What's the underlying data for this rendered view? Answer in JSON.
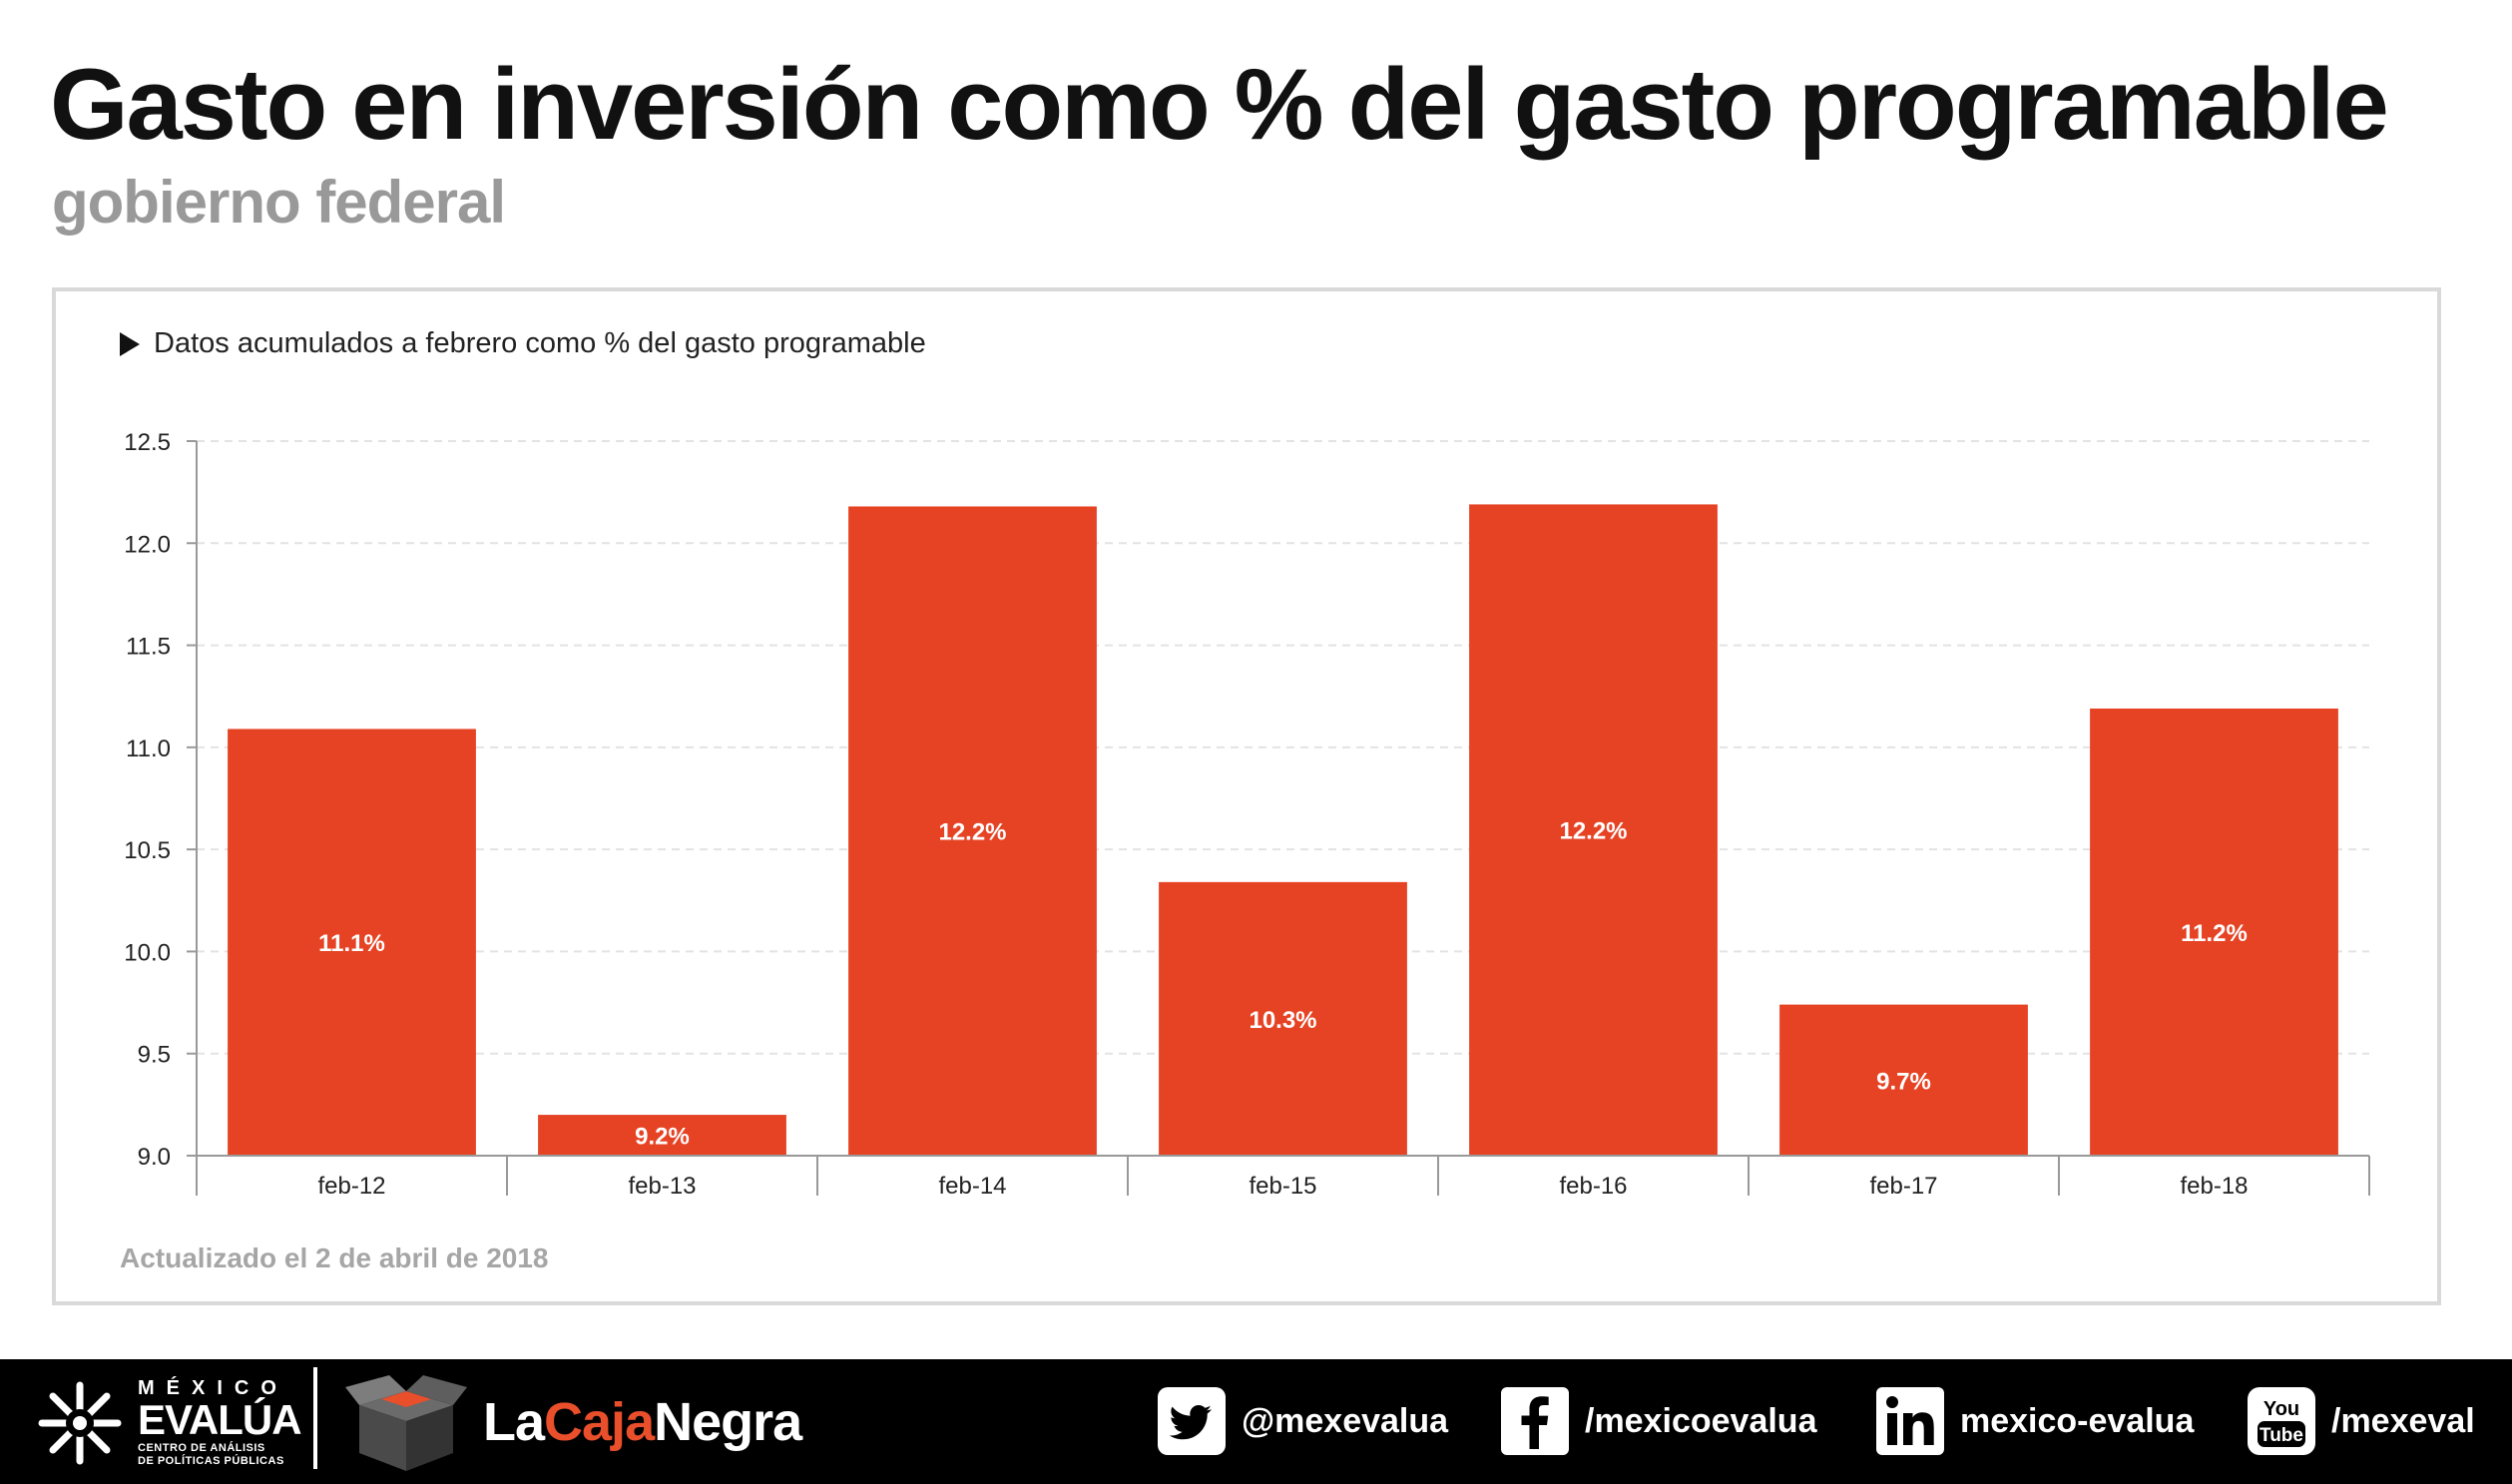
{
  "title": "Gasto en inversión como % del gasto programable",
  "subtitle": "gobierno federal",
  "note": "Datos acumulados a febrero como % del gasto programable",
  "updated": "Actualizado el 2 de abril de 2018",
  "colors": {
    "bar": "#e64324",
    "bar_label": "#ffffff",
    "footer_bg": "#000000",
    "accent": "#e84f2a"
  },
  "chart_data": {
    "type": "bar",
    "categories": [
      "feb-12",
      "feb-13",
      "feb-14",
      "feb-15",
      "feb-16",
      "feb-17",
      "feb-18"
    ],
    "values": [
      11.09,
      9.2,
      12.18,
      10.34,
      12.19,
      9.74,
      11.19
    ],
    "data_labels": [
      "11.1%",
      "9.2%",
      "12.2%",
      "10.3%",
      "12.2%",
      "9.7%",
      "11.2%"
    ],
    "yticks": [
      "9.0",
      "9.5",
      "10.0",
      "10.5",
      "11.0",
      "11.5",
      "12.0",
      "12.5"
    ],
    "ylim": [
      9.0,
      12.5
    ],
    "grid": true,
    "xlabel": "",
    "ylabel": ""
  },
  "footer": {
    "brand_top": "MÉXICO",
    "brand_main": "EVALÚA",
    "brand_sub_1": "CENTRO DE ANÁLISIS",
    "brand_sub_2": "DE POLÍTICAS PÚBLICAS",
    "caja_part1": "La",
    "caja_part2": "Caja",
    "caja_part3": "Negra",
    "social": [
      {
        "icon": "twitter-icon",
        "label": "@mexevalua"
      },
      {
        "icon": "facebook-icon",
        "label": "/mexicoevalua"
      },
      {
        "icon": "linkedin-icon",
        "label": "mexico-evalua"
      },
      {
        "icon": "youtube-icon",
        "label": "/mexeval",
        "icon_text_1": "You",
        "icon_text_2": "Tube"
      }
    ]
  }
}
